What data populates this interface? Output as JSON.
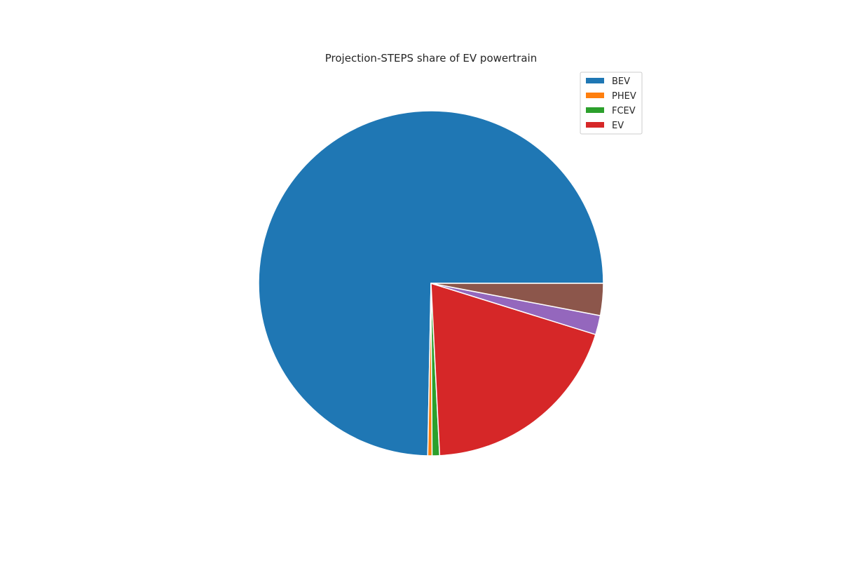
{
  "chart_data": {
    "type": "pie",
    "title": "Projection-STEPS share of EV powertrain",
    "slices": [
      {
        "label": "BEV",
        "value": 74.7,
        "color": "#1f77b4",
        "in_legend": true
      },
      {
        "label": "PHEV",
        "value": 0.4,
        "color": "#ff7f0e",
        "in_legend": true
      },
      {
        "label": "FCEV",
        "value": 0.7,
        "color": "#2ca02c",
        "in_legend": true
      },
      {
        "label": "EV",
        "value": 19.4,
        "color": "#d62728",
        "in_legend": true
      },
      {
        "label": "",
        "value": 1.8,
        "color": "#9467bd",
        "in_legend": false
      },
      {
        "label": "",
        "value": 3.0,
        "color": "#8c564b",
        "in_legend": false
      }
    ],
    "legend": {
      "position": "top-right",
      "entries": [
        "BEV",
        "PHEV",
        "FCEV",
        "EV"
      ]
    },
    "start_angle_deg": 0,
    "direction": "counterclockwise"
  }
}
